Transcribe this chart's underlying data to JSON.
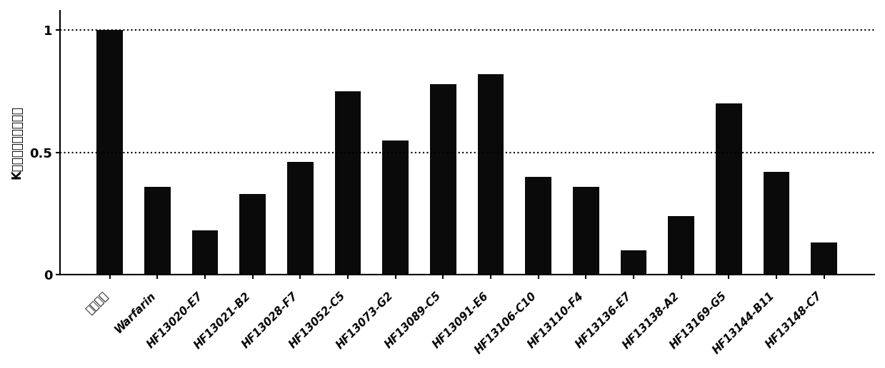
{
  "categories": [
    "未处理组",
    "Warfarin",
    "HF13020-E7",
    "HF13021-B2",
    "HF13028-F7",
    "HF13052-C5",
    "HF13073-G2",
    "HF13089-C5",
    "HF13091-E6",
    "HF13106-C10",
    "HF13110-F4",
    "HF13136-E7",
    "HF13138-A2",
    "HF13169-G5",
    "HF13144-B11",
    "HF13148-C7"
  ],
  "values": [
    1.0,
    0.36,
    0.18,
    0.33,
    0.46,
    0.75,
    0.55,
    0.78,
    0.82,
    0.4,
    0.36,
    0.1,
    0.24,
    0.7,
    0.42,
    0.13
  ],
  "bar_color": "#0a0a0a",
  "ylabel": "K底物均一化的荧光值",
  "ylim": [
    0,
    1.08
  ],
  "ytick_values": [
    0,
    0.5,
    1
  ],
  "ytick_labels": [
    "0",
    "0.5",
    "1"
  ],
  "hlines": [
    0.5,
    1.0
  ],
  "background_color": "#ffffff",
  "bar_width": 0.55
}
